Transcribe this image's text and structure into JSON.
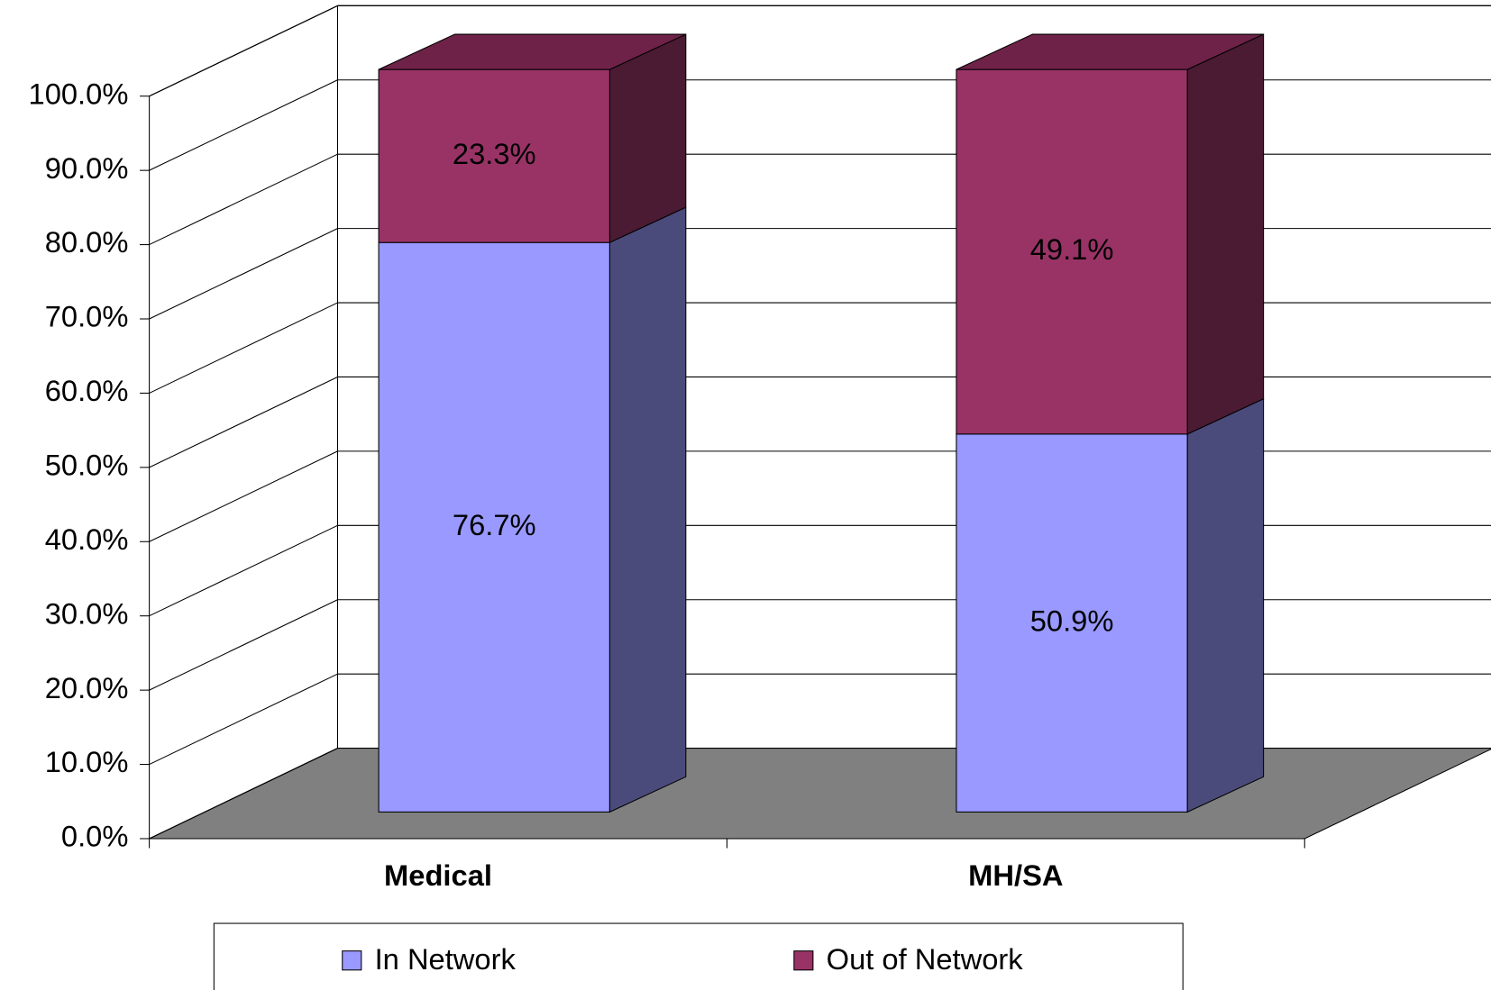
{
  "chart_data": {
    "type": "bar3d_stacked",
    "categories": [
      "Medical",
      "MH/SA"
    ],
    "series": [
      {
        "name": "In Network",
        "color": "#9999ff",
        "side_color": "#4b4b7b",
        "values": [
          76.7,
          50.9
        ],
        "value_labels": [
          "76.7%",
          "50.9%"
        ]
      },
      {
        "name": "Out of Network",
        "color": "#993366",
        "side_color": "#4b1a33",
        "values": [
          23.3,
          49.1
        ],
        "value_labels": [
          "23.3%",
          "49.1%"
        ]
      }
    ],
    "ylim": [
      0,
      100
    ],
    "yticks": [
      {
        "value": 0,
        "label": "0.0%"
      },
      {
        "value": 10,
        "label": "10.0%"
      },
      {
        "value": 20,
        "label": "20.0%"
      },
      {
        "value": 30,
        "label": "30.0%"
      },
      {
        "value": 40,
        "label": "40.0%"
      },
      {
        "value": 50,
        "label": "50.0%"
      },
      {
        "value": 60,
        "label": "60.0%"
      },
      {
        "value": 70,
        "label": "70.0%"
      },
      {
        "value": 80,
        "label": "80.0%"
      },
      {
        "value": 90,
        "label": "90.0%"
      },
      {
        "value": 100,
        "label": "100.0%"
      }
    ],
    "grid": true,
    "legend": "bottom"
  }
}
